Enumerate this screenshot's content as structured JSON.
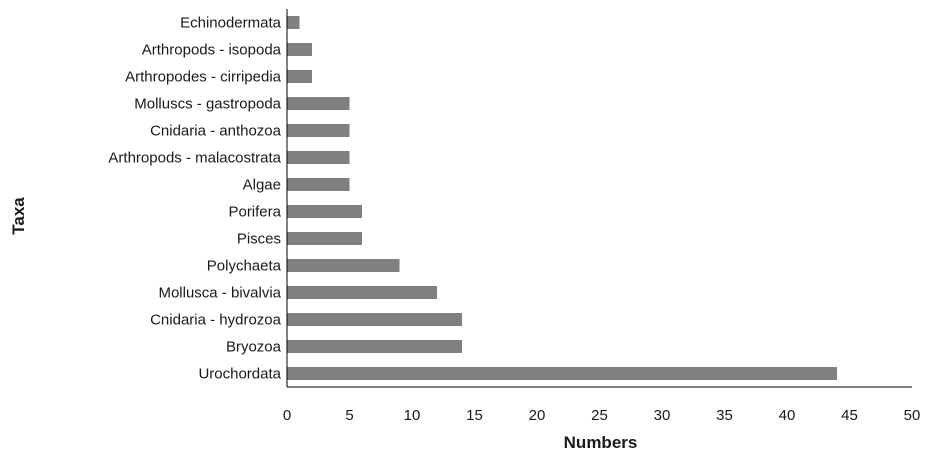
{
  "chart_data": {
    "type": "bar",
    "orientation": "horizontal",
    "title": "",
    "xlabel": "Numbers",
    "ylabel": "Taxa",
    "xlim": [
      0,
      50
    ],
    "xticks": [
      "0",
      "5",
      "10",
      "15",
      "20",
      "25",
      "30",
      "35",
      "40",
      "45",
      "50"
    ],
    "grid": false,
    "bar_color": "#808080",
    "categories": [
      "Echinodermata",
      "Arthropods - isopoda",
      "Arthropodes - cirripedia",
      "Molluscs - gastropoda",
      "Cnidaria - anthozoa",
      "Arthropods - malacostrata",
      "Algae",
      "Porifera",
      "Pisces",
      "Polychaeta",
      "Mollusca - bivalvia",
      "Cnidaria - hydrozoa",
      "Bryozoa",
      "Urochordata"
    ],
    "values": [
      1,
      2,
      2,
      5,
      5,
      5,
      5,
      6,
      6,
      9,
      12,
      14,
      14,
      44
    ]
  }
}
